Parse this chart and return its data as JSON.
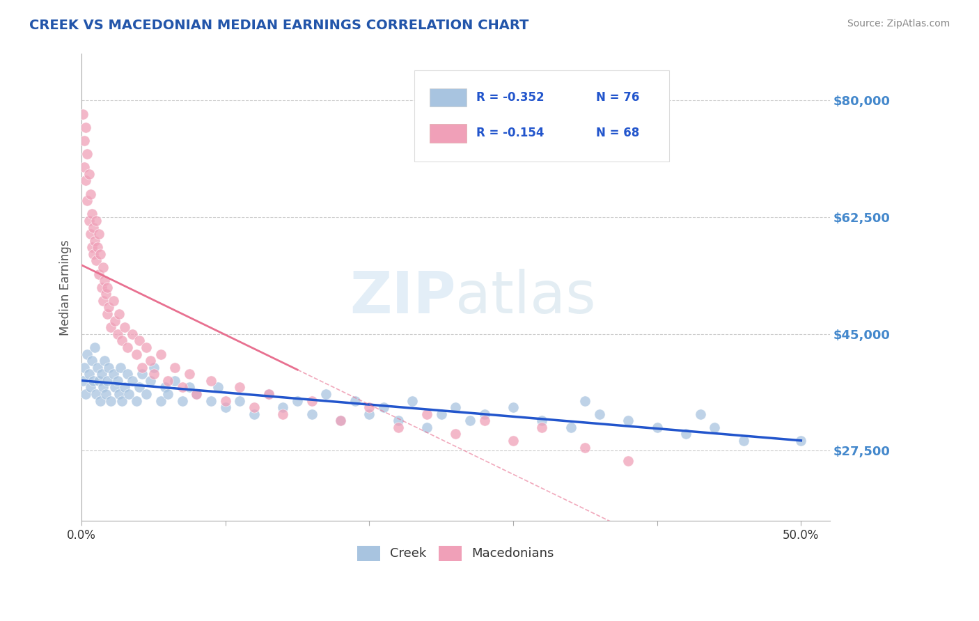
{
  "title": "CREEK VS MACEDONIAN MEDIAN EARNINGS CORRELATION CHART",
  "source_text": "Source: ZipAtlas.com",
  "ylabel": "Median Earnings",
  "xlim": [
    0.0,
    0.52
  ],
  "ylim": [
    17000,
    87000
  ],
  "yticks": [
    27500,
    45000,
    62500,
    80000
  ],
  "ytick_labels": [
    "$27,500",
    "$45,000",
    "$62,500",
    "$80,000"
  ],
  "xticks": [
    0.0,
    0.1,
    0.2,
    0.3,
    0.4,
    0.5
  ],
  "xtick_labels": [
    "0.0%",
    "",
    "",
    "",
    "",
    "50.0%"
  ],
  "title_color": "#2255aa",
  "axis_color": "#4488cc",
  "background_color": "#ffffff",
  "grid_color": "#cccccc",
  "creek_color": "#a8c4e0",
  "macedonian_color": "#f0a0b8",
  "creek_line_color": "#2255cc",
  "macedonian_line_color": "#e87090",
  "watermark_color": "#d8e8f4",
  "watermark_text": "ZIPatlas",
  "legend_R_creek": "R = -0.352",
  "legend_N_creek": "N = 76",
  "legend_R_mac": "R = -0.154",
  "legend_N_mac": "N = 68",
  "legend_label_creek": "Creek",
  "legend_label_mac": "Macedonians",
  "creek_x": [
    0.001,
    0.002,
    0.003,
    0.004,
    0.005,
    0.006,
    0.007,
    0.008,
    0.009,
    0.01,
    0.011,
    0.012,
    0.013,
    0.014,
    0.015,
    0.016,
    0.017,
    0.018,
    0.019,
    0.02,
    0.022,
    0.023,
    0.025,
    0.026,
    0.027,
    0.028,
    0.03,
    0.032,
    0.033,
    0.035,
    0.038,
    0.04,
    0.042,
    0.045,
    0.048,
    0.05,
    0.055,
    0.058,
    0.06,
    0.065,
    0.07,
    0.075,
    0.08,
    0.09,
    0.095,
    0.1,
    0.11,
    0.12,
    0.13,
    0.14,
    0.15,
    0.16,
    0.17,
    0.18,
    0.19,
    0.2,
    0.21,
    0.22,
    0.23,
    0.24,
    0.25,
    0.26,
    0.27,
    0.28,
    0.3,
    0.32,
    0.34,
    0.36,
    0.38,
    0.4,
    0.42,
    0.44,
    0.46,
    0.35,
    0.43,
    0.5
  ],
  "creek_y": [
    38000,
    40000,
    36000,
    42000,
    39000,
    37000,
    41000,
    38000,
    43000,
    36000,
    40000,
    38000,
    35000,
    39000,
    37000,
    41000,
    36000,
    38000,
    40000,
    35000,
    39000,
    37000,
    38000,
    36000,
    40000,
    35000,
    37000,
    39000,
    36000,
    38000,
    35000,
    37000,
    39000,
    36000,
    38000,
    40000,
    35000,
    37000,
    36000,
    38000,
    35000,
    37000,
    36000,
    35000,
    37000,
    34000,
    35000,
    33000,
    36000,
    34000,
    35000,
    33000,
    36000,
    32000,
    35000,
    33000,
    34000,
    32000,
    35000,
    31000,
    33000,
    34000,
    32000,
    33000,
    34000,
    32000,
    31000,
    33000,
    32000,
    31000,
    30000,
    31000,
    29000,
    35000,
    33000,
    29000
  ],
  "macedonian_x": [
    0.001,
    0.002,
    0.002,
    0.003,
    0.003,
    0.004,
    0.004,
    0.005,
    0.005,
    0.006,
    0.006,
    0.007,
    0.007,
    0.008,
    0.008,
    0.009,
    0.01,
    0.01,
    0.011,
    0.012,
    0.012,
    0.013,
    0.014,
    0.015,
    0.015,
    0.016,
    0.017,
    0.018,
    0.018,
    0.019,
    0.02,
    0.022,
    0.023,
    0.025,
    0.026,
    0.028,
    0.03,
    0.032,
    0.035,
    0.038,
    0.04,
    0.042,
    0.045,
    0.048,
    0.05,
    0.055,
    0.06,
    0.065,
    0.07,
    0.075,
    0.08,
    0.09,
    0.1,
    0.11,
    0.12,
    0.13,
    0.14,
    0.16,
    0.18,
    0.2,
    0.22,
    0.24,
    0.26,
    0.28,
    0.3,
    0.32,
    0.35,
    0.38
  ],
  "macedonian_y": [
    78000,
    74000,
    70000,
    76000,
    68000,
    72000,
    65000,
    69000,
    62000,
    66000,
    60000,
    63000,
    58000,
    61000,
    57000,
    59000,
    62000,
    56000,
    58000,
    60000,
    54000,
    57000,
    52000,
    55000,
    50000,
    53000,
    51000,
    48000,
    52000,
    49000,
    46000,
    50000,
    47000,
    45000,
    48000,
    44000,
    46000,
    43000,
    45000,
    42000,
    44000,
    40000,
    43000,
    41000,
    39000,
    42000,
    38000,
    40000,
    37000,
    39000,
    36000,
    38000,
    35000,
    37000,
    34000,
    36000,
    33000,
    35000,
    32000,
    34000,
    31000,
    33000,
    30000,
    32000,
    29000,
    31000,
    28000,
    26000
  ]
}
